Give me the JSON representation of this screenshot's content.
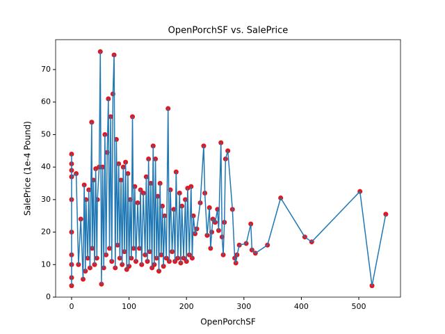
{
  "chart_data": {
    "type": "line",
    "title": "OpenPorchSF vs. SalePrice",
    "x_label": "OpenPorchSF",
    "y_label": "SalePrice (1e-4 Pound)",
    "x": [
      0,
      0,
      0,
      0,
      0,
      0,
      0,
      0,
      0,
      0,
      8,
      12,
      16,
      20,
      22,
      24,
      25,
      28,
      30,
      32,
      35,
      36,
      38,
      40,
      42,
      44,
      45,
      48,
      50,
      52,
      54,
      56,
      58,
      60,
      62,
      64,
      66,
      68,
      70,
      72,
      74,
      76,
      78,
      80,
      82,
      84,
      86,
      88,
      90,
      92,
      94,
      96,
      98,
      100,
      102,
      104,
      106,
      108,
      110,
      112,
      115,
      118,
      120,
      122,
      125,
      128,
      130,
      132,
      134,
      136,
      138,
      140,
      142,
      144,
      146,
      148,
      150,
      152,
      154,
      156,
      158,
      160,
      162,
      165,
      168,
      170,
      172,
      175,
      178,
      180,
      182,
      185,
      188,
      190,
      192,
      195,
      198,
      200,
      202,
      205,
      208,
      210,
      212,
      215,
      218,
      224,
      230,
      232,
      236,
      240,
      242,
      244,
      246,
      250,
      254,
      256,
      260,
      262,
      264,
      266,
      268,
      272,
      280,
      284,
      286,
      288,
      292,
      304,
      312,
      314,
      320,
      341,
      364,
      406,
      418,
      502,
      523,
      547
    ],
    "values": [
      3.5,
      44,
      10,
      41,
      6,
      39,
      13,
      30,
      20,
      37,
      38,
      10,
      24,
      5.5,
      34.5,
      8,
      30,
      12,
      33,
      9,
      53.8,
      15,
      36,
      10,
      39.5,
      12,
      30,
      40,
      75.5,
      4,
      40,
      9,
      50,
      13,
      44.5,
      61,
      15,
      55.5,
      11,
      62.5,
      74.5,
      9,
      48.5,
      16,
      41,
      12,
      36,
      10,
      40,
      14,
      41.5,
      8.5,
      38,
      9.5,
      30,
      12,
      55.5,
      15,
      34,
      11,
      29,
      15,
      33,
      10,
      32,
      13,
      37,
      11,
      42.5,
      14,
      35,
      9,
      46.5,
      10,
      42.5,
      12,
      31,
      8,
      35,
      13,
      28,
      9.5,
      25,
      12,
      58,
      11,
      33,
      14,
      27,
      11,
      38.5,
      12,
      32,
      10.5,
      28,
      12,
      30,
      11,
      33.5,
      13,
      34,
      12,
      25,
      19.5,
      21,
      29,
      46.5,
      32,
      19,
      27.5,
      15,
      20,
      24,
      23,
      27,
      20.5,
      47.5,
      18.5,
      13,
      23,
      42.5,
      45,
      27,
      12,
      10.5,
      13,
      16,
      16.5,
      22.5,
      14.5,
      13.5,
      16,
      30.5,
      18.5,
      17,
      32.5,
      3.5,
      25.5
    ],
    "color": "#1f77b4",
    "marker_color": "#e8141c",
    "xlim": [
      -27.8,
      572.6
    ],
    "ylim": [
      0,
      79.2
    ],
    "xticks": [
      0,
      100,
      200,
      300,
      400,
      500
    ],
    "yticks": [
      0,
      10,
      20,
      30,
      40,
      50,
      60,
      70
    ]
  }
}
